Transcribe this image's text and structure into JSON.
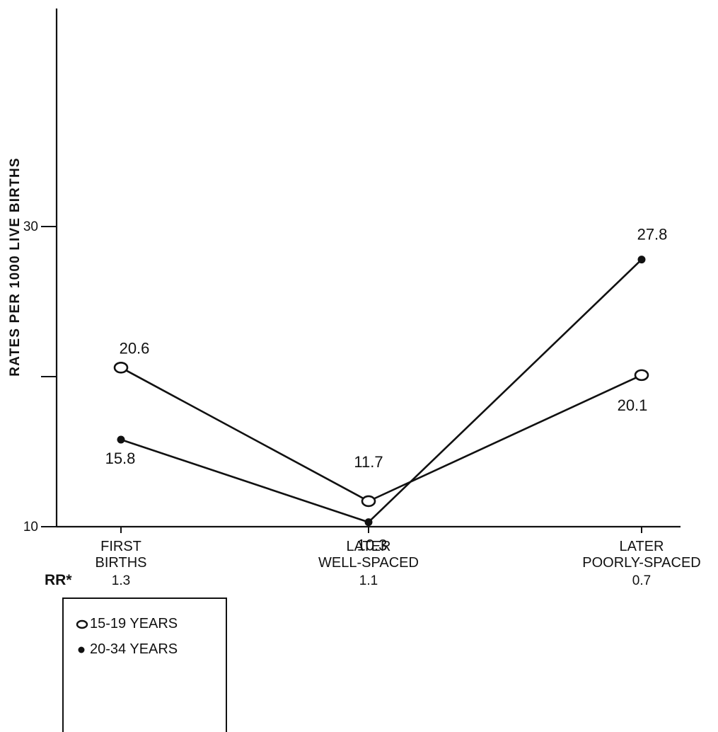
{
  "chart_data": {
    "type": "line",
    "title": "",
    "ylabel": "RATES PER 1000 LIVE BIRTHS",
    "xlabel": "",
    "ylim": [
      10,
      33
    ],
    "y_ticks": [
      {
        "value": 30,
        "label": "30"
      },
      {
        "value": 20,
        "label": ""
      },
      {
        "value": 10,
        "label": "10"
      }
    ],
    "categories": [
      [
        "FIRST",
        "BIRTHS"
      ],
      [
        "LATER",
        "WELL-SPACED"
      ],
      [
        "LATER",
        "POORLY-SPACED"
      ]
    ],
    "rr_label": "RR*",
    "rr_values": [
      "1.3",
      "1.1",
      "0.7"
    ],
    "series": [
      {
        "name": "15-19 YEARS",
        "marker": "open-circle",
        "values": [
          20.6,
          11.7,
          20.1
        ],
        "labels": [
          "20.6",
          "11.7",
          "20.1"
        ]
      },
      {
        "name": "20-34 YEARS",
        "marker": "filled-dot",
        "values": [
          15.8,
          10.3,
          27.8
        ],
        "labels": [
          "15.8",
          "10.3",
          "27.8"
        ]
      }
    ],
    "grid": false,
    "legend_position": "bottom-left"
  },
  "legend": {
    "items": [
      {
        "label": "15-19 YEARS",
        "icon": "open-circle-icon"
      },
      {
        "label": "20-34 YEARS",
        "icon": "filled-dot-icon"
      }
    ]
  },
  "colors": {
    "ink": "#111111",
    "background": "#ffffff"
  }
}
